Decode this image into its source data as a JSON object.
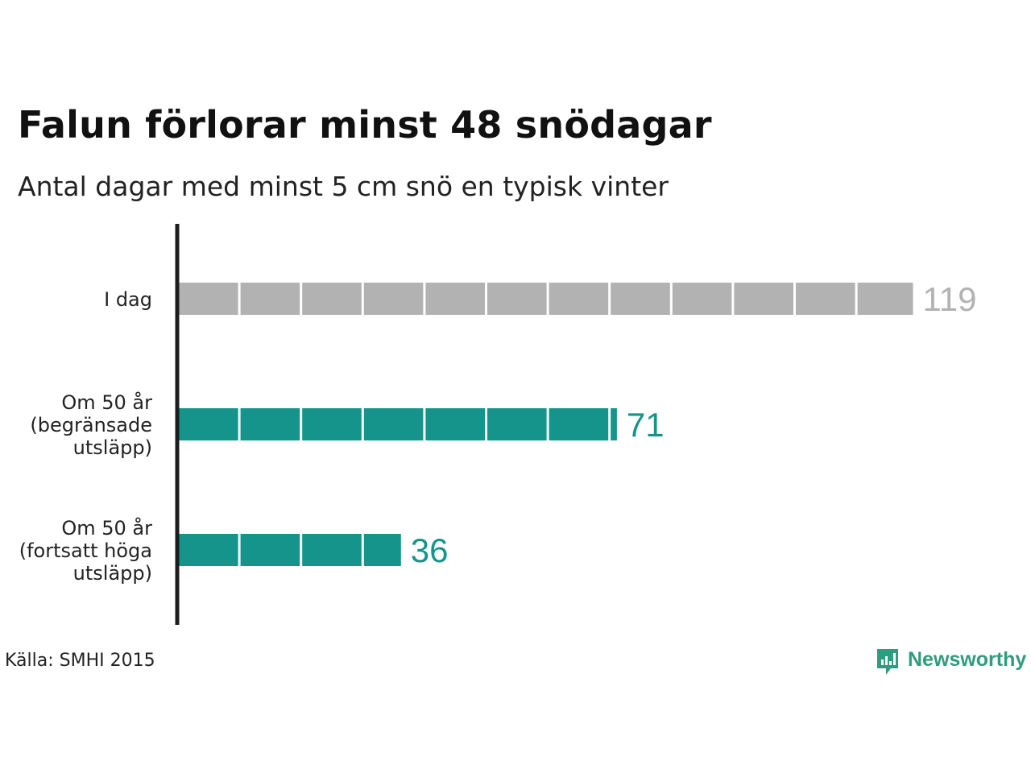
{
  "chart_data": {
    "type": "bar",
    "orientation": "horizontal",
    "title": "Falun förlorar minst 48 snödagar",
    "subtitle": "Antal dagar med minst 5 cm snö en typisk vinter",
    "categories": [
      [
        "I dag"
      ],
      [
        "Om 50 år",
        "(begränsade",
        "utsläpp)"
      ],
      [
        "Om 50 år",
        "(fortsatt höga",
        "utsläpp)"
      ]
    ],
    "values": [
      119,
      71,
      36
    ],
    "value_labels": [
      "119",
      "71",
      "36"
    ],
    "bar_colors": [
      "#b2b2b2",
      "#14948a",
      "#14948a"
    ],
    "label_colors": [
      "#b2b2b2",
      "#14948a",
      "#14948a"
    ],
    "segment_size": 10,
    "xlim": [
      0,
      119
    ],
    "grid": false,
    "xlabel": "",
    "ylabel": ""
  },
  "source": "Källa: SMHI 2015",
  "brand": {
    "name": "Newsworthy",
    "color": "#2e9c7f",
    "icon": "newsworthy-bar-chart-logo-icon"
  }
}
